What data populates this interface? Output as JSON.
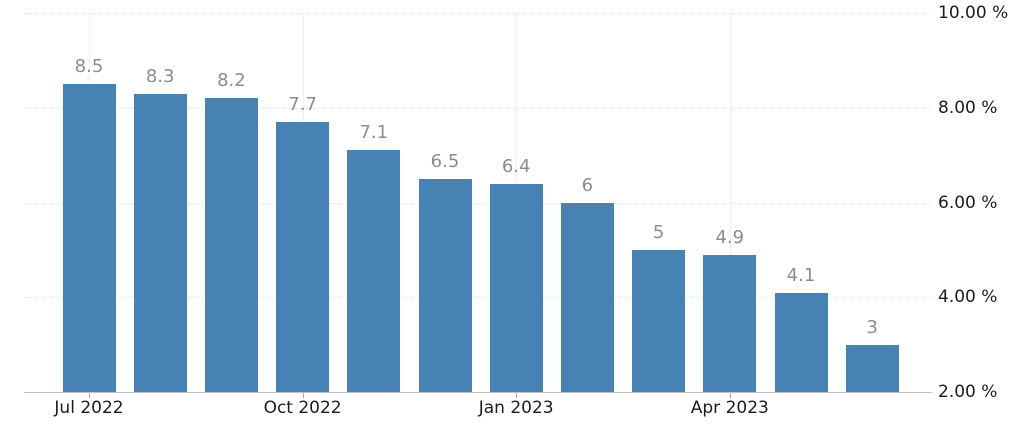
{
  "chart_data": {
    "type": "bar",
    "title": "",
    "unit": "%",
    "values": [
      8.5,
      8.3,
      8.2,
      7.7,
      7.1,
      6.5,
      6.4,
      6,
      5,
      4.9,
      4.1,
      3
    ],
    "value_labels": [
      "8.5",
      "8.3",
      "8.2",
      "7.7",
      "7.1",
      "6.5",
      "6.4",
      "6",
      "5",
      "4.9",
      "4.1",
      "3"
    ],
    "x_ticks": [
      {
        "bar_index": 0,
        "label": "Jul 2022"
      },
      {
        "bar_index": 3,
        "label": "Oct 2022"
      },
      {
        "bar_index": 6,
        "label": "Jan 2023"
      },
      {
        "bar_index": 9,
        "label": "Apr 2023"
      }
    ],
    "y_ticks": [
      {
        "value": 10,
        "label": "10.00 %"
      },
      {
        "value": 8,
        "label": "8.00 %"
      },
      {
        "value": 6,
        "label": "6.00 %"
      },
      {
        "value": 4,
        "label": "4.00 %"
      },
      {
        "value": 2,
        "label": "2.00 %"
      }
    ],
    "ylim": [
      2,
      10
    ],
    "grid": {
      "horizontal": true,
      "vertical": true,
      "style": "dotted"
    },
    "legend": "none",
    "y_axis_side": "right",
    "colors": {
      "bar": "#4682b4",
      "value_label": "#8c8c8c",
      "axis_text": "#1c1c1c",
      "gridline": "#e2e2e2",
      "axis_line": "#bfbfbf",
      "tick": "#a8a8a8",
      "background": "#ffffff"
    }
  }
}
